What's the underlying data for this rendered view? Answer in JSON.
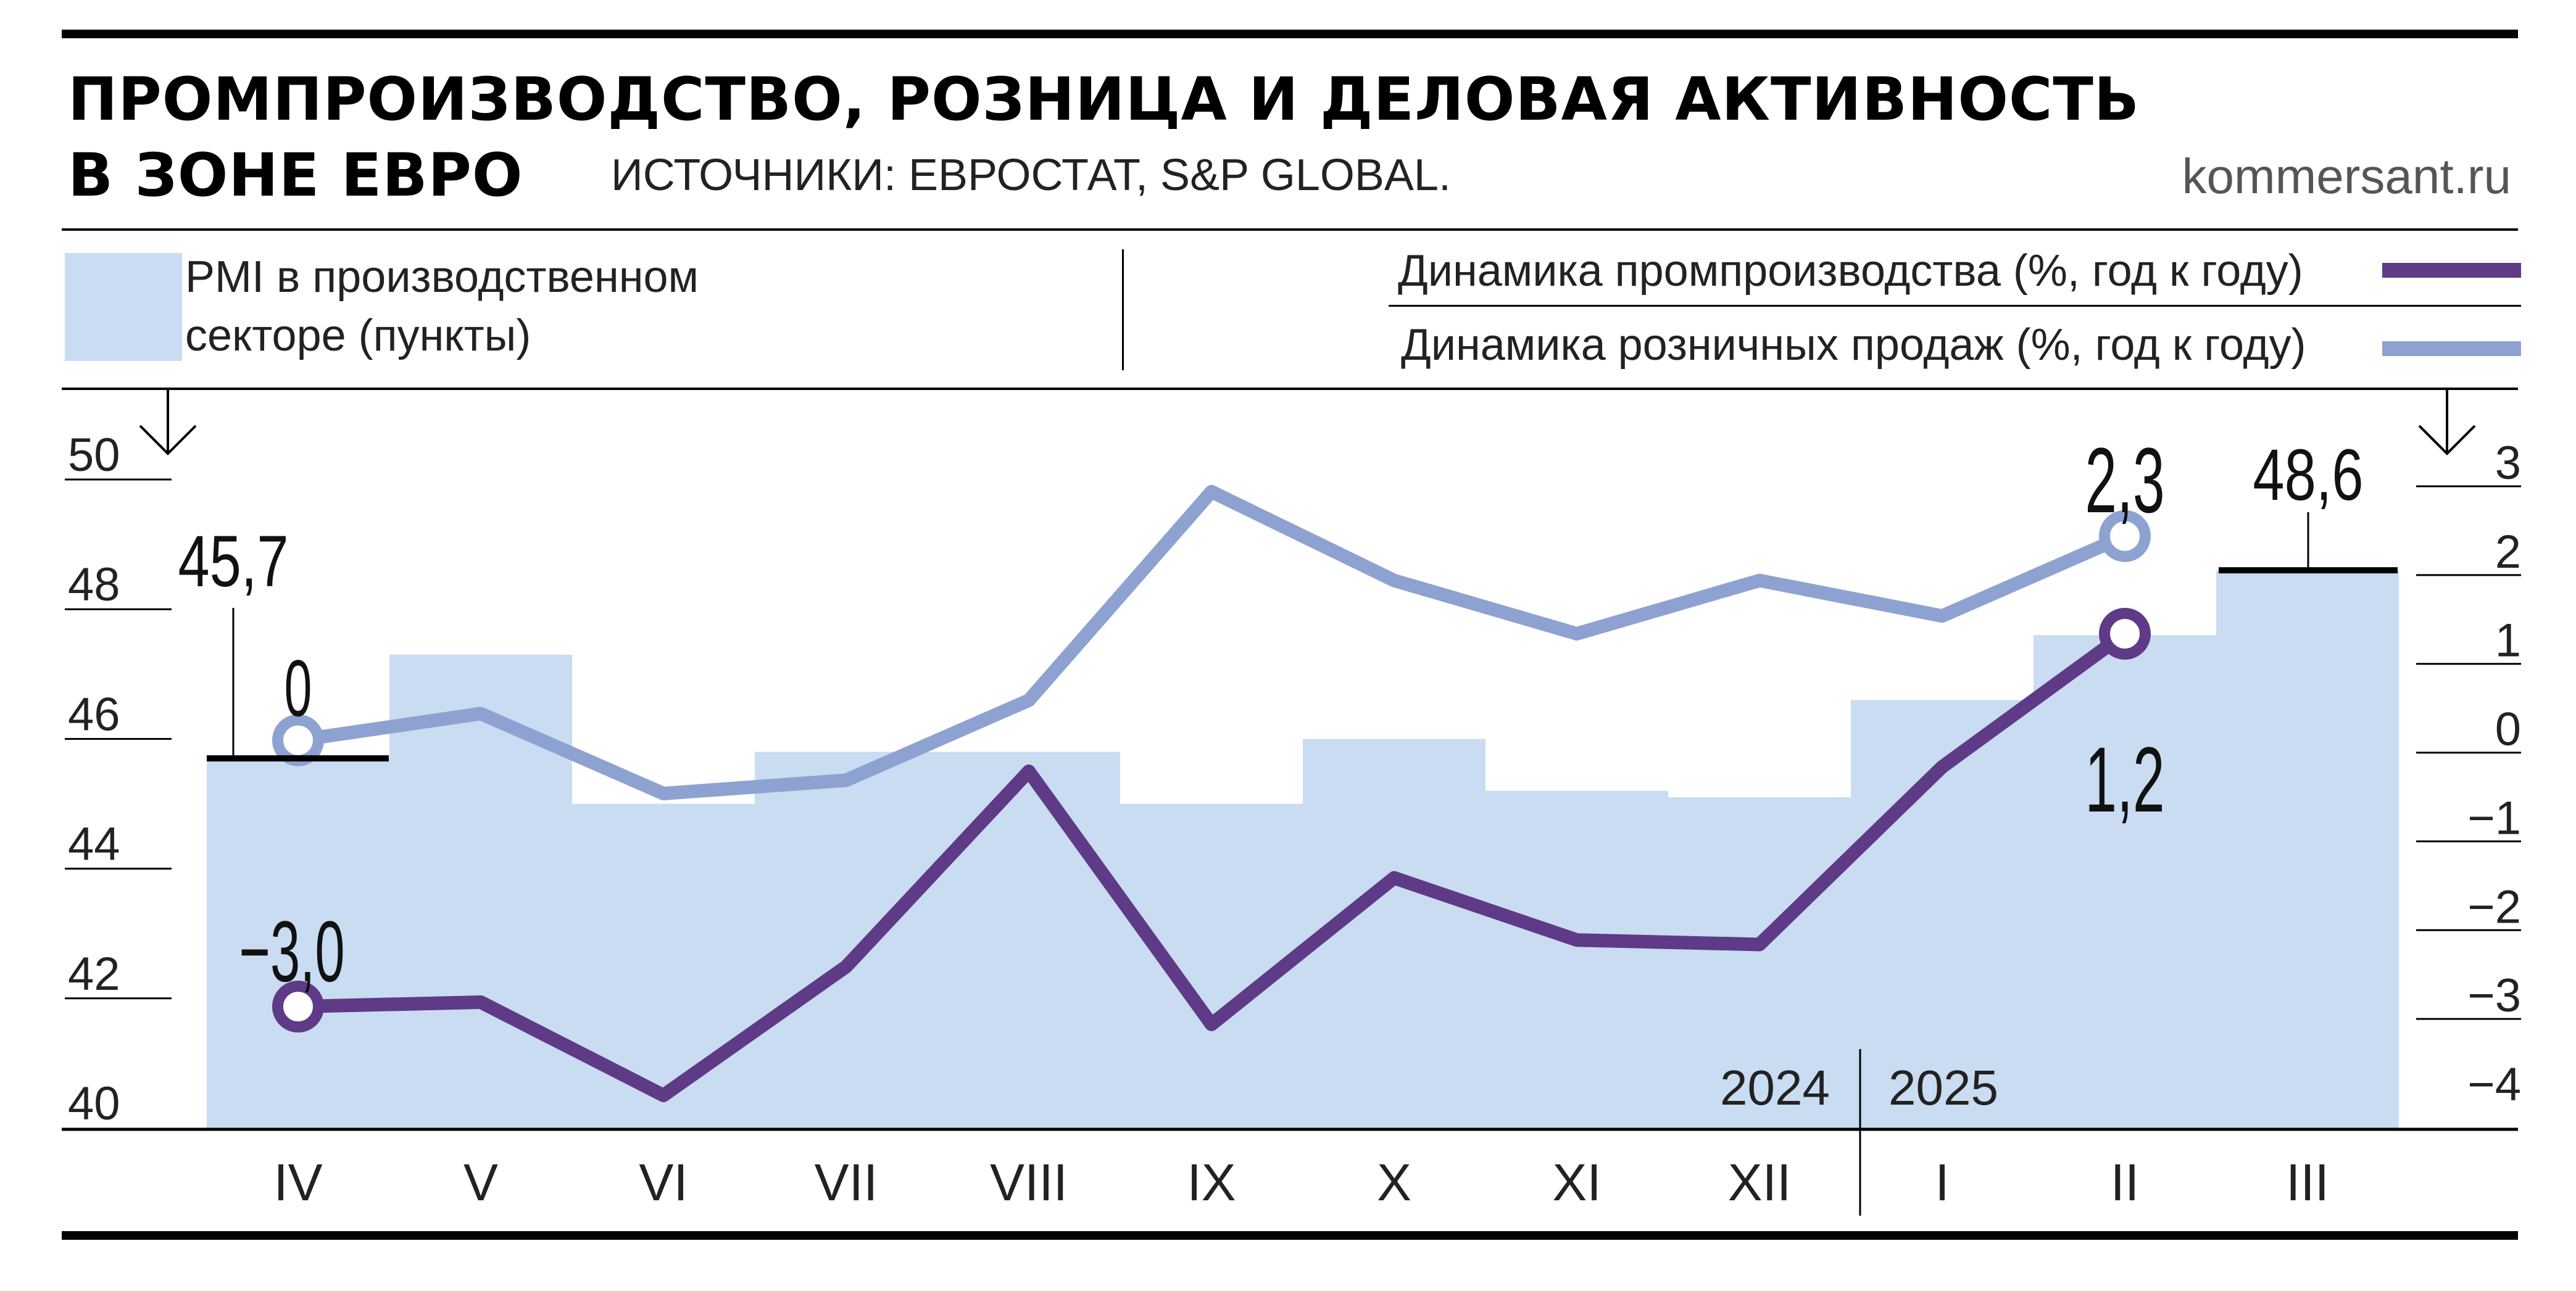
{
  "header": {
    "title_line1": "ПРОМПРОИЗВОДСТВО, РОЗНИЦА И ДЕЛОВАЯ АКТИВНОСТЬ",
    "title_line2": "В ЗОНЕ ЕВРО",
    "source": "ИСТОЧНИКИ: ЕВРОСТАТ, S&P GLOBAL.",
    "site": "kommersant.ru"
  },
  "legend": {
    "pmi_line1": "PMI в производственном",
    "pmi_line2": "секторе (пункты)",
    "industry": "Динамика промпроизводства (%, год к году)",
    "retail": "Динамика розничных продаж (%, год к году)"
  },
  "colors": {
    "pmi": "#c9dcf1",
    "industry": "#5e3a87",
    "retail": "#8ea2d2"
  },
  "chart_data": {
    "type": "bar",
    "categories": [
      "IV",
      "V",
      "VI",
      "VII",
      "VIII",
      "IX",
      "X",
      "XI",
      "XII",
      "I",
      "II",
      "III"
    ],
    "year_labels": [
      "2024",
      "2025"
    ],
    "left_axis": {
      "ylim": [
        40,
        50
      ],
      "ticks": [
        "40",
        "42",
        "44",
        "46",
        "48",
        "50"
      ]
    },
    "right_axis": {
      "ylim": [
        -4,
        3
      ],
      "ticks": [
        "−4",
        "−3",
        "−2",
        "−1",
        "0",
        "1",
        "2",
        "3"
      ]
    },
    "series": [
      {
        "key": "pmi",
        "type": "bar",
        "axis": "left",
        "values": [
          45.7,
          47.3,
          45.0,
          45.8,
          45.8,
          45.0,
          46.0,
          45.2,
          45.1,
          46.6,
          47.6,
          48.6
        ]
      },
      {
        "key": "industry",
        "type": "line",
        "axis": "right",
        "values": [
          -3.0,
          -2.95,
          -4.0,
          -2.55,
          -0.35,
          -3.2,
          -1.55,
          -2.25,
          -2.3,
          -0.3,
          1.2,
          null
        ]
      },
      {
        "key": "retail",
        "type": "line",
        "axis": "right",
        "values": [
          0.0,
          0.3,
          -0.6,
          -0.45,
          0.45,
          2.8,
          1.8,
          1.2,
          1.8,
          1.4,
          2.3,
          null
        ]
      }
    ],
    "annotations": [
      {
        "series": "pmi",
        "index": 0,
        "label": "45,7"
      },
      {
        "series": "pmi",
        "index": 11,
        "label": "48,6"
      },
      {
        "series": "retail",
        "index": 0,
        "label": "0"
      },
      {
        "series": "retail",
        "index": 10,
        "label": "2,3"
      },
      {
        "series": "industry",
        "index": 0,
        "label": "−3,0"
      },
      {
        "series": "industry",
        "index": 10,
        "label": "1,2"
      }
    ]
  }
}
